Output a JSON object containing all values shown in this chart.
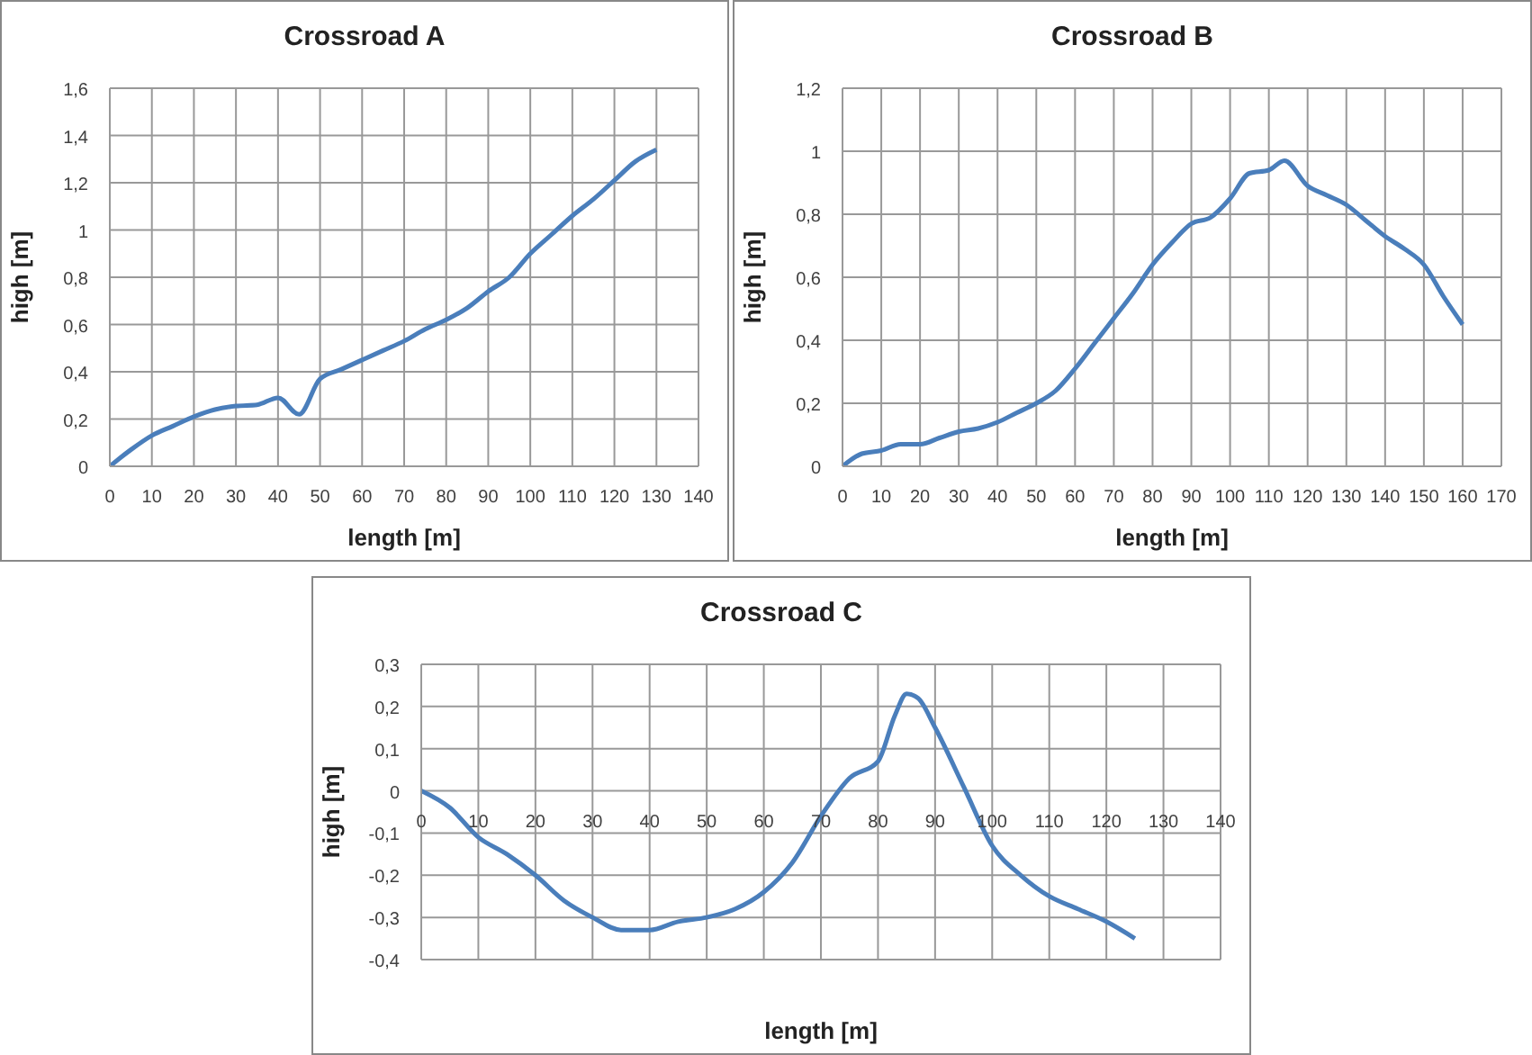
{
  "chart_data": [
    {
      "type": "line",
      "title": "Crossroad A",
      "xlabel": "length  [m]",
      "ylabel": "high  [m]",
      "xlim": [
        0,
        140
      ],
      "xticks": [
        0,
        10,
        20,
        30,
        40,
        50,
        60,
        70,
        80,
        90,
        100,
        110,
        120,
        130,
        140
      ],
      "ylim": [
        0,
        1.6
      ],
      "yticks": [
        {
          "value": 0,
          "label": "0"
        },
        {
          "value": 0.2,
          "label": "0,2"
        },
        {
          "value": 0.4,
          "label": "0,4"
        },
        {
          "value": 0.6,
          "label": "0,6"
        },
        {
          "value": 0.8,
          "label": "0,8"
        },
        {
          "value": 1,
          "label": "1"
        },
        {
          "value": 1.2,
          "label": "1,2"
        },
        {
          "value": 1.4,
          "label": "1,4"
        },
        {
          "value": 1.6,
          "label": "1,6"
        }
      ],
      "grid": true,
      "legend": false,
      "marker": "none",
      "line_style": "solid",
      "series": [
        {
          "color": "#4a7ebb",
          "x": [
            0,
            5,
            10,
            15,
            20,
            25,
            30,
            35,
            40,
            45,
            50,
            55,
            60,
            65,
            70,
            75,
            80,
            85,
            90,
            95,
            100,
            105,
            110,
            115,
            120,
            125,
            130
          ],
          "values": [
            0,
            0.07,
            0.13,
            0.17,
            0.21,
            0.24,
            0.255,
            0.26,
            0.29,
            0.22,
            0.37,
            0.41,
            0.45,
            0.49,
            0.53,
            0.58,
            0.62,
            0.67,
            0.74,
            0.8,
            0.9,
            0.98,
            1.06,
            1.13,
            1.21,
            1.29,
            1.34
          ]
        }
      ]
    },
    {
      "type": "line",
      "title": "Crossroad B",
      "xlabel": "length [m]",
      "ylabel": "high [m]",
      "xlim": [
        0,
        170
      ],
      "xticks": [
        0,
        10,
        20,
        30,
        40,
        50,
        60,
        70,
        80,
        90,
        100,
        110,
        120,
        130,
        140,
        150,
        160,
        170
      ],
      "ylim": [
        0,
        1.2
      ],
      "yticks": [
        {
          "value": 0,
          "label": "0"
        },
        {
          "value": 0.2,
          "label": "0,2"
        },
        {
          "value": 0.4,
          "label": "0,4"
        },
        {
          "value": 0.6,
          "label": "0,6"
        },
        {
          "value": 0.8,
          "label": "0,8"
        },
        {
          "value": 1,
          "label": "1"
        },
        {
          "value": 1.2,
          "label": "1,2"
        }
      ],
      "grid": true,
      "legend": false,
      "marker": "none",
      "line_style": "solid",
      "series": [
        {
          "color": "#4a7ebb",
          "x": [
            0,
            5,
            10,
            15,
            20,
            25,
            30,
            35,
            40,
            45,
            50,
            55,
            60,
            65,
            70,
            75,
            80,
            85,
            90,
            95,
            100,
            105,
            110,
            114,
            120,
            125,
            130,
            135,
            140,
            145,
            150,
            155,
            160
          ],
          "values": [
            0,
            0.04,
            0.05,
            0.07,
            0.07,
            0.09,
            0.11,
            0.12,
            0.14,
            0.17,
            0.2,
            0.24,
            0.31,
            0.39,
            0.47,
            0.55,
            0.64,
            0.71,
            0.77,
            0.79,
            0.85,
            0.93,
            0.94,
            0.97,
            0.89,
            0.86,
            0.83,
            0.78,
            0.73,
            0.69,
            0.64,
            0.54,
            0.45
          ]
        }
      ]
    },
    {
      "type": "line",
      "title": "Crossroad C",
      "xlabel": "length [m]",
      "ylabel": "high [m]",
      "xlim": [
        0,
        140
      ],
      "xticks": [
        0,
        10,
        20,
        30,
        40,
        50,
        60,
        70,
        80,
        90,
        100,
        110,
        120,
        130,
        140
      ],
      "ylim": [
        -0.4,
        0.3
      ],
      "yticks": [
        {
          "value": -0.4,
          "label": "-0,4"
        },
        {
          "value": -0.3,
          "label": "-0,3"
        },
        {
          "value": -0.2,
          "label": "-0,2"
        },
        {
          "value": -0.1,
          "label": "-0,1"
        },
        {
          "value": 0,
          "label": "0"
        },
        {
          "value": 0.1,
          "label": "0,1"
        },
        {
          "value": 0.2,
          "label": "0,2"
        },
        {
          "value": 0.3,
          "label": "0,3"
        }
      ],
      "grid": true,
      "legend": false,
      "marker": "none",
      "line_style": "solid",
      "series": [
        {
          "color": "#4a7ebb",
          "x": [
            0,
            5,
            10,
            15,
            20,
            25,
            30,
            35,
            40,
            45,
            50,
            55,
            60,
            65,
            70,
            75,
            80,
            83,
            85,
            87,
            90,
            95,
            100,
            105,
            110,
            115,
            120,
            125
          ],
          "values": [
            0,
            -0.04,
            -0.11,
            -0.15,
            -0.2,
            -0.26,
            -0.3,
            -0.33,
            -0.33,
            -0.31,
            -0.3,
            -0.28,
            -0.24,
            -0.17,
            -0.06,
            0.03,
            0.07,
            0.18,
            0.23,
            0.22,
            0.15,
            0.01,
            -0.13,
            -0.2,
            -0.25,
            -0.28,
            -0.31,
            -0.35
          ]
        }
      ]
    }
  ]
}
